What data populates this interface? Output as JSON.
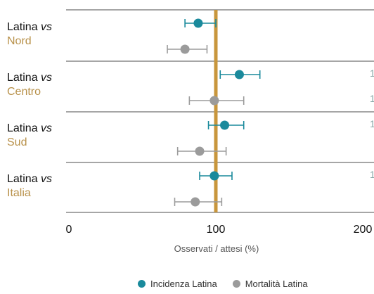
{
  "colors": {
    "incidence": "#1a8a9c",
    "mortality": "#9b9b9b",
    "reference": "#c8963c",
    "region_text": "#b8914a",
    "grid": "#888888"
  },
  "rows": [
    {
      "prefix": "Latina ",
      "vs": "vs",
      "region": "Nord",
      "cut_values": []
    },
    {
      "prefix": "Latina ",
      "vs": "vs",
      "region": "Centro",
      "cut_values": [
        "1",
        "1"
      ]
    },
    {
      "prefix": "Latina ",
      "vs": "vs",
      "region": "Sud",
      "cut_values": [
        "1"
      ]
    },
    {
      "prefix": "Latina ",
      "vs": "vs",
      "region": "Italia",
      "cut_values": [
        "1"
      ]
    }
  ],
  "chart_data": {
    "type": "scatter",
    "xlabel": "Osservati / attesi (%)",
    "xlim": [
      0,
      200
    ],
    "xticks": [
      "0",
      "100",
      "200"
    ],
    "reference_line": 100,
    "categories": [
      "Latina vs Nord",
      "Latina vs Centro",
      "Latina vs Sud",
      "Latina vs Italia"
    ],
    "series": [
      {
        "name": "Incidenza Latina",
        "values": [
          88,
          116,
          106,
          99
        ],
        "lower": [
          79,
          103,
          95,
          89
        ],
        "upper": [
          100,
          130,
          119,
          111
        ]
      },
      {
        "name": "Mortalità Latina",
        "values": [
          79,
          99,
          89,
          86
        ],
        "lower": [
          67,
          82,
          74,
          72
        ],
        "upper": [
          94,
          119,
          107,
          104
        ]
      }
    ]
  },
  "legend": [
    {
      "label": "Incidenza Latina",
      "color": "#1a8a9c"
    },
    {
      "label": "Mortalità Latina",
      "color": "#9b9b9b"
    }
  ]
}
